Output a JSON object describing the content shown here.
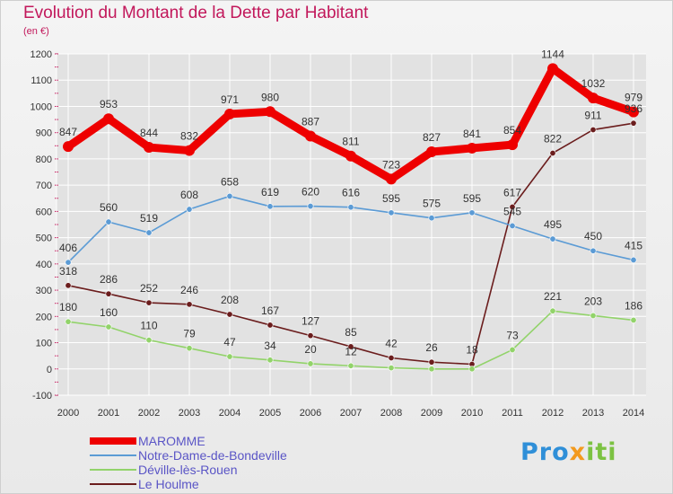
{
  "header": {
    "title": "Evolution du Montant de la Dette par Habitant",
    "subtitle": "(en €)"
  },
  "logo": {
    "part1": "Pro",
    "part2": "x",
    "part3": "iti"
  },
  "colors": {
    "title": "#c2185b",
    "maromme": "#ee0000",
    "notre_dame": "#5b9bd5",
    "deville": "#92d36a",
    "le_houlme": "#6b1d1d",
    "grid": "#ffffff"
  },
  "chart_data": {
    "type": "line",
    "title": "Evolution du Montant de la Dette par Habitant",
    "subtitle": "(en €)",
    "xlabel": "",
    "ylabel": "",
    "x": [
      "2000",
      "2001",
      "2002",
      "2003",
      "2004",
      "2005",
      "2006",
      "2007",
      "2008",
      "2009",
      "2010",
      "2011",
      "2012",
      "2013",
      "2014"
    ],
    "ylim": [
      -100,
      1200
    ],
    "yticks": [
      -100,
      0,
      100,
      200,
      300,
      400,
      500,
      600,
      700,
      800,
      900,
      1000,
      1100,
      1200
    ],
    "grid": true,
    "legend_position": "bottom-left",
    "series": [
      {
        "name": "MAROMME",
        "key": "maromme",
        "color": "#ee0000",
        "values": [
          847,
          953,
          844,
          832,
          971,
          980,
          887,
          811,
          723,
          827,
          841,
          854,
          1144,
          1032,
          979
        ]
      },
      {
        "name": "Notre-Dame-de-Bondeville",
        "key": "notre_dame",
        "color": "#5b9bd5",
        "values": [
          406,
          560,
          519,
          608,
          658,
          619,
          620,
          616,
          595,
          575,
          595,
          545,
          495,
          450,
          415
        ]
      },
      {
        "name": "Déville-lès-Rouen",
        "key": "deville",
        "color": "#92d36a",
        "values": [
          180,
          160,
          110,
          79,
          47,
          34,
          20,
          12,
          4,
          0,
          0,
          73,
          221,
          203,
          186
        ]
      },
      {
        "name": "Le Houlme",
        "key": "le_houlme",
        "color": "#6b1d1d",
        "values": [
          318,
          286,
          252,
          246,
          208,
          167,
          127,
          85,
          42,
          26,
          18,
          617,
          822,
          911,
          936
        ]
      }
    ],
    "data_labels": {
      "maromme": [
        "847",
        "953",
        "844",
        "832",
        "971",
        "980",
        "887",
        "811",
        "723",
        "827",
        "841",
        "854",
        "1144",
        "1032",
        "979"
      ],
      "notre_dame": [
        "406",
        "560",
        "519",
        "608",
        "658",
        "619",
        "620",
        "616",
        "595",
        "575",
        "595",
        "545",
        "495",
        "450",
        "415"
      ],
      "deville": [
        "180",
        "160",
        "110",
        "79",
        "47",
        "34",
        "20",
        "12",
        "",
        "",
        "",
        "73",
        "221",
        "203",
        "186"
      ],
      "le_houlme": [
        "318",
        "286",
        "252",
        "246",
        "208",
        "167",
        "127",
        "85",
        "42",
        "26",
        "18",
        "617",
        "822",
        "911",
        "936"
      ]
    }
  }
}
